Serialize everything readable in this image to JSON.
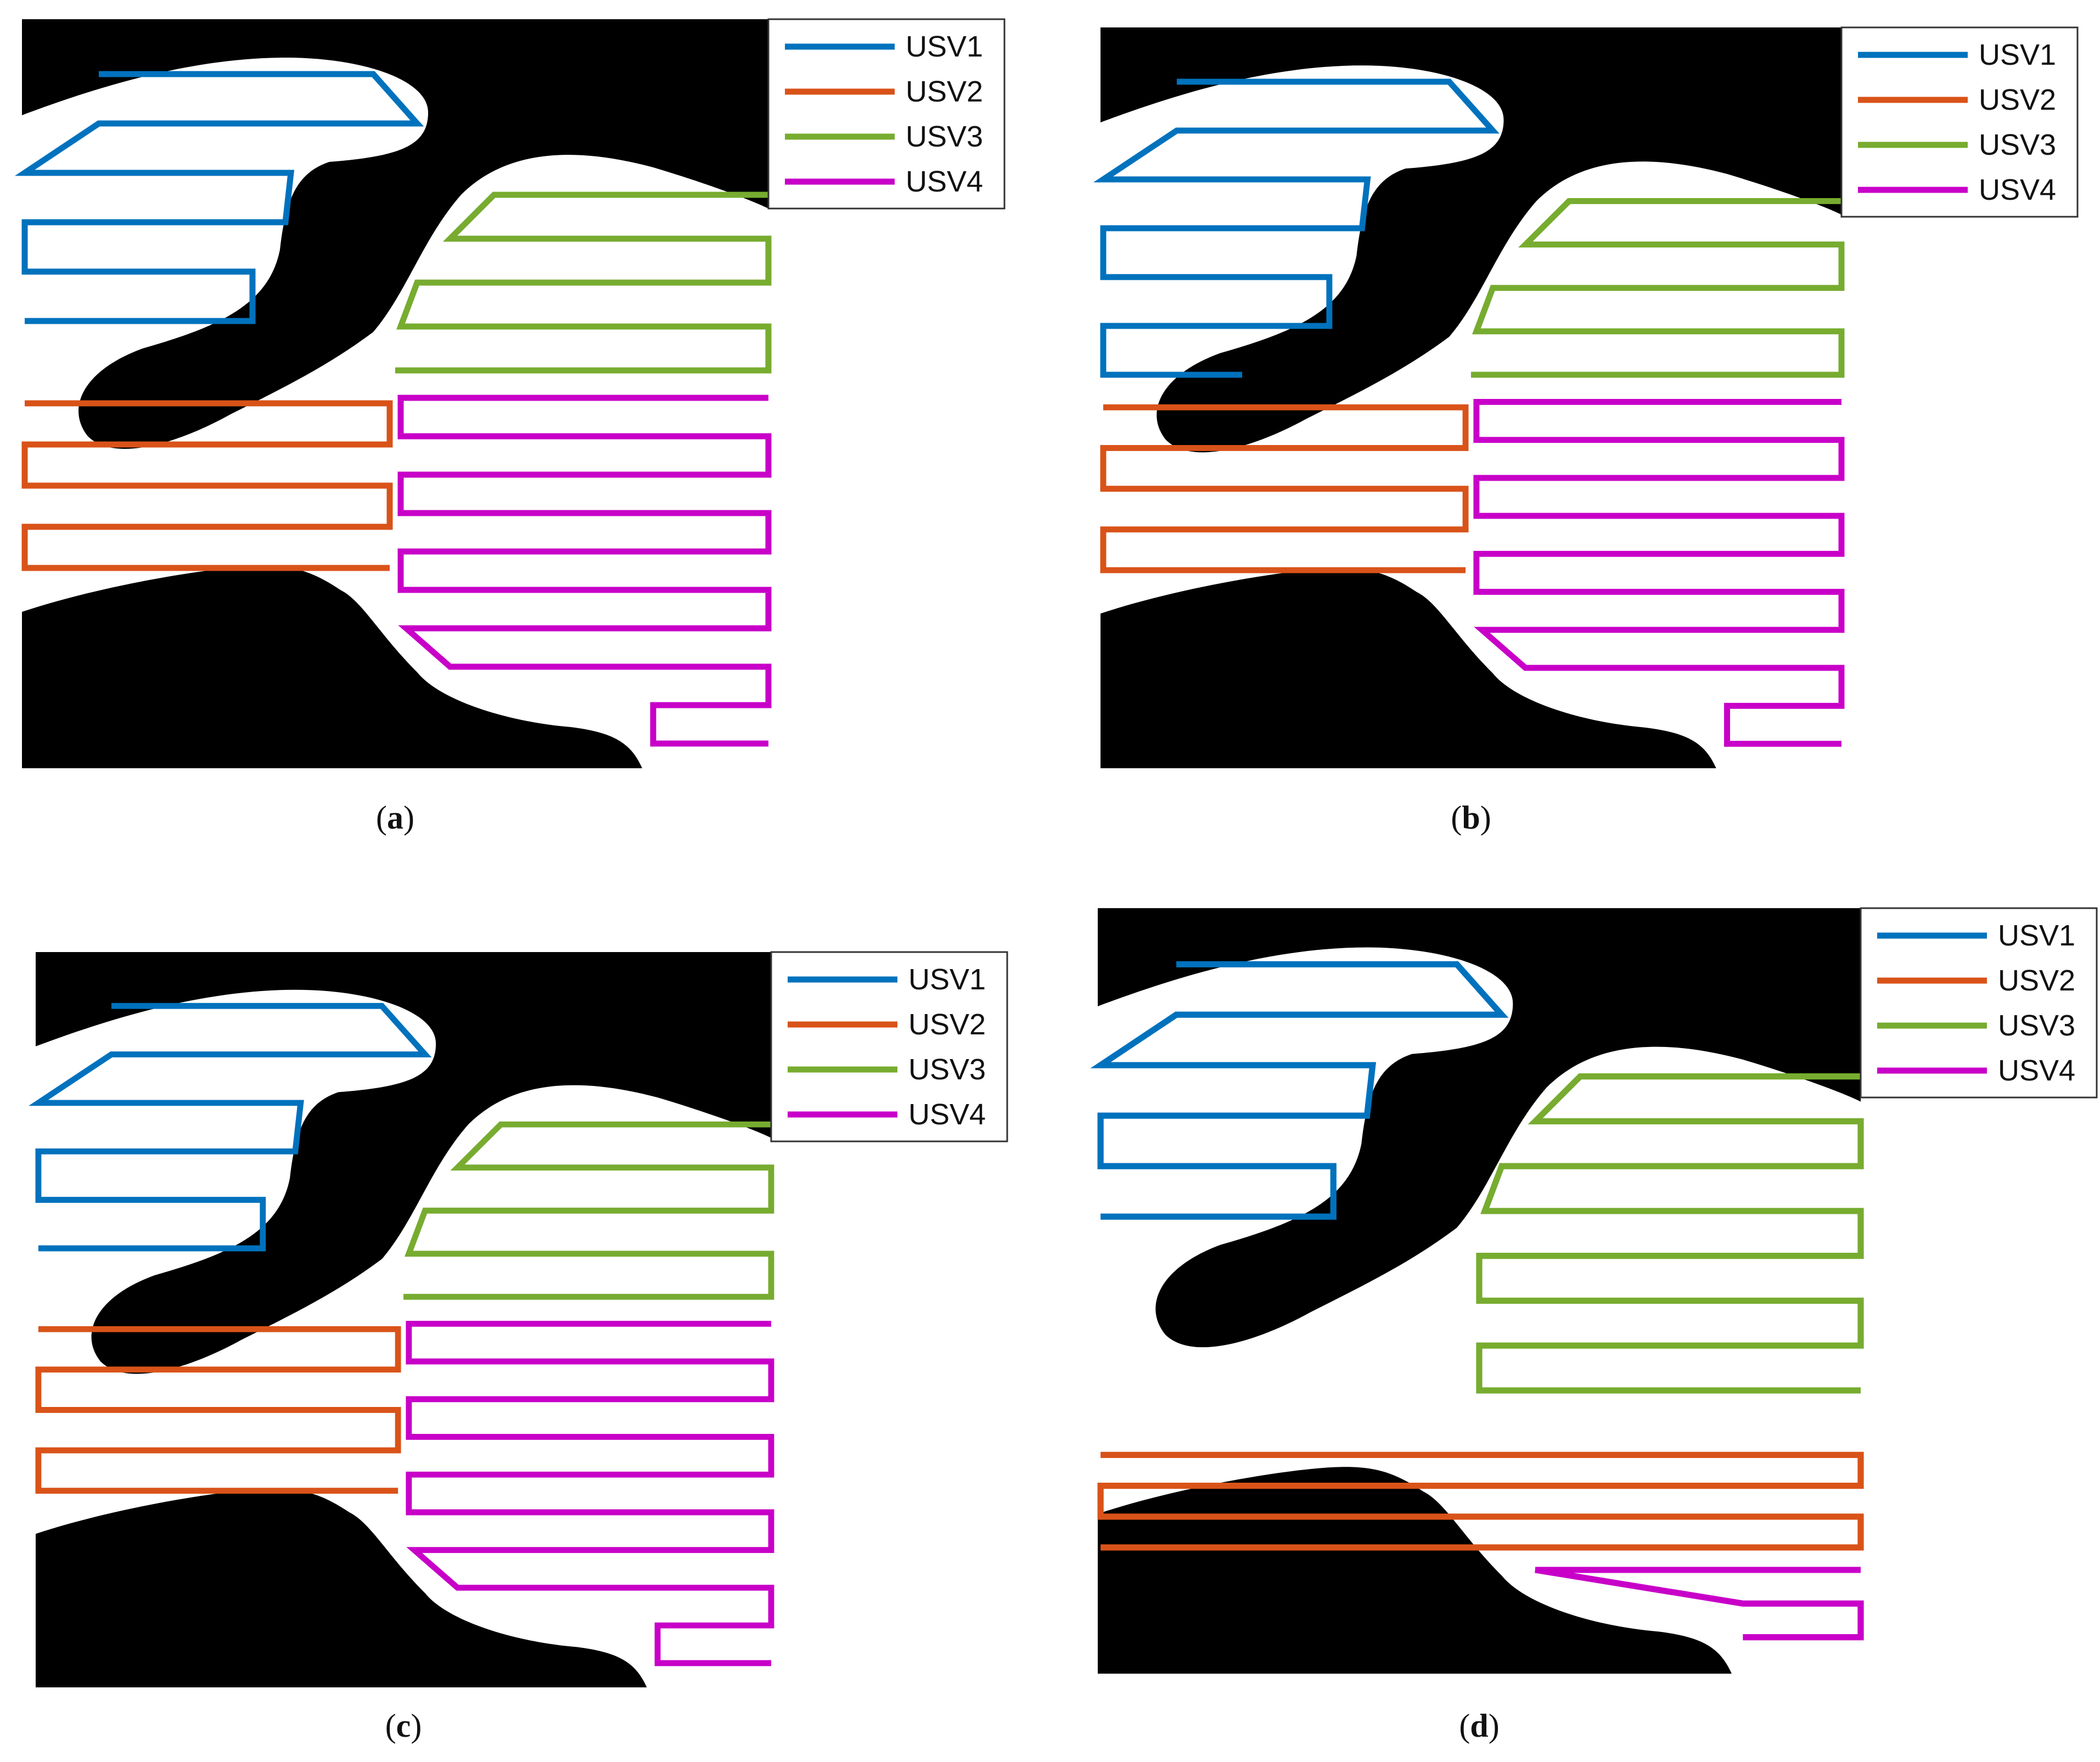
{
  "colors": {
    "usv1": "#0072BD",
    "usv2": "#D95319",
    "usv3": "#77AC30",
    "usv4": "#C800C8",
    "obstacle": "#000000",
    "water": "#ffffff"
  },
  "legend_entries": [
    {
      "name": "USV1",
      "color_key": "usv1"
    },
    {
      "name": "USV2",
      "color_key": "usv2"
    },
    {
      "name": "USV3",
      "color_key": "usv3"
    },
    {
      "name": "USV4",
      "color_key": "usv4"
    }
  ],
  "panels": [
    {
      "id": "a",
      "caption_letter": "a"
    },
    {
      "id": "b",
      "caption_letter": "b"
    },
    {
      "id": "c",
      "caption_letter": "c"
    },
    {
      "id": "d",
      "caption_letter": "d"
    }
  ]
}
